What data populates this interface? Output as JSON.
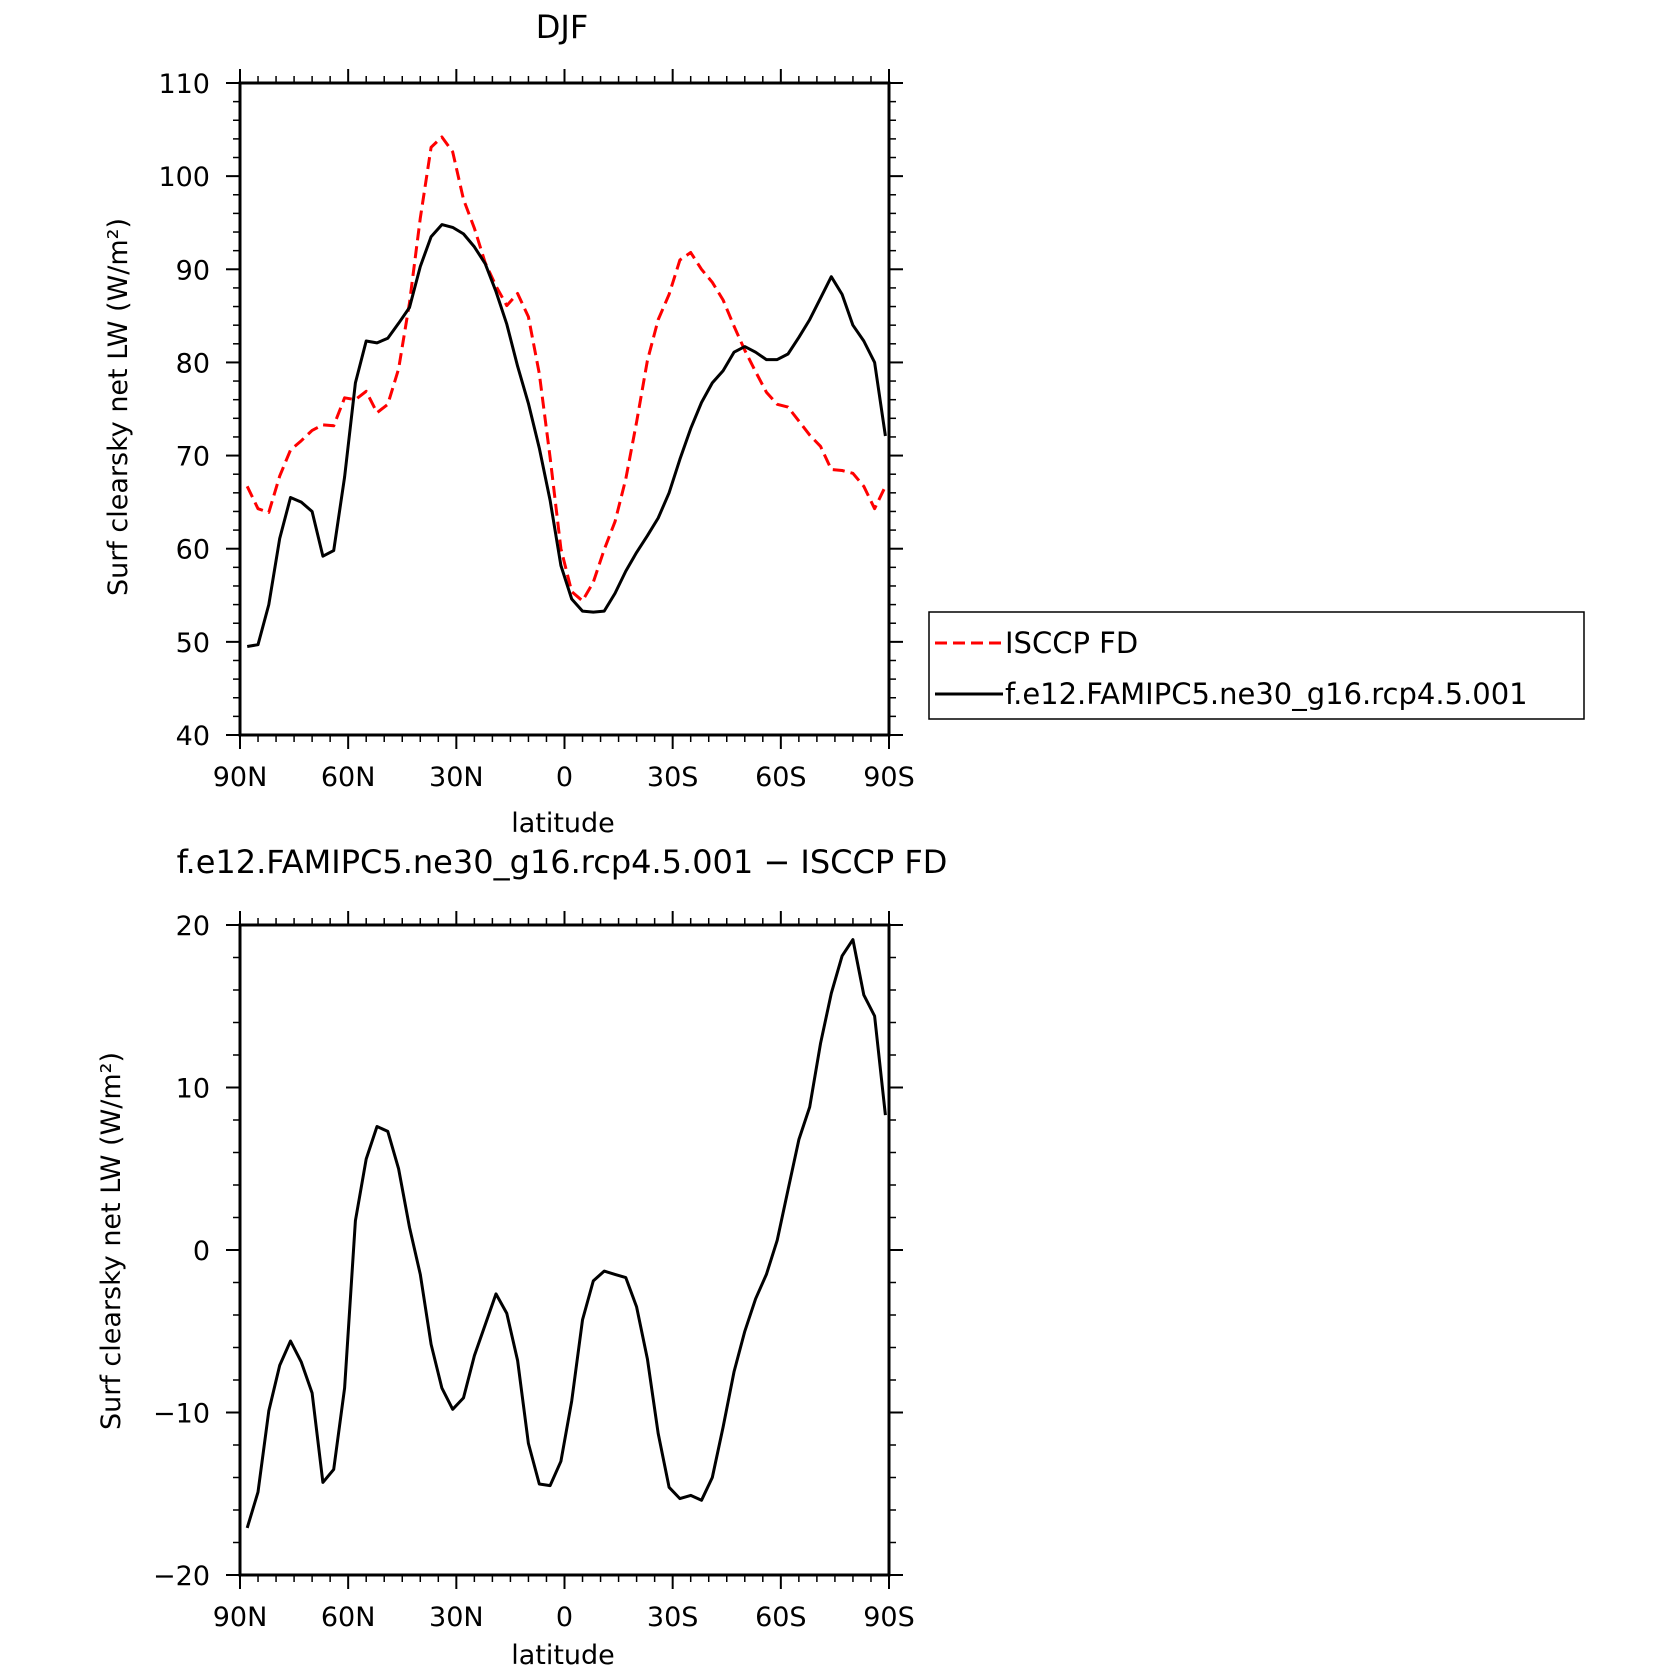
{
  "panels": [
    {
      "title": "DJF",
      "xlabel": "latitude",
      "ylabel": "Surf clearsky net LW (W/m²)",
      "legend": {
        "entries": [
          "ISCCP FD",
          "f.e12.FAMIPC5.ne30_g16.rcp4.5.001"
        ],
        "colors": [
          "#ff0000",
          "#000000"
        ],
        "styles": [
          "dashed",
          "solid"
        ]
      }
    },
    {
      "title": "f.e12.FAMIPC5.ne30_g16.rcp4.5.001 − ISCCP FD",
      "xlabel": "latitude",
      "ylabel": "Surf clearsky net LW (W/m²)"
    }
  ],
  "chart_data": [
    {
      "type": "line",
      "title": "DJF",
      "xlabel": "latitude",
      "ylabel": "Surf clearsky net LW (W/m²)",
      "xlim": [
        90,
        -90
      ],
      "ylim": [
        40,
        110
      ],
      "xticks": [
        90,
        60,
        30,
        0,
        -30,
        -60,
        -90
      ],
      "xtick_labels": [
        "90N",
        "60N",
        "30N",
        "0",
        "30S",
        "60S",
        "90S"
      ],
      "yticks": [
        40,
        50,
        60,
        70,
        80,
        90,
        100,
        110
      ],
      "ytick_labels": [
        "40",
        "50",
        "60",
        "70",
        "80",
        "90",
        "100",
        "110"
      ],
      "legend_position": "right",
      "series": [
        {
          "name": "ISCCP FD",
          "color": "#ff0000",
          "dash": "dashed",
          "x": [
            88,
            85,
            82,
            79,
            76,
            73,
            70,
            67,
            64,
            61,
            58,
            55,
            52,
            49,
            46,
            43,
            40,
            37,
            34,
            31,
            28,
            25,
            22,
            19,
            16,
            13,
            10,
            7,
            4,
            1,
            -2,
            -5,
            -8,
            -11,
            -14,
            -17,
            -20,
            -23,
            -26,
            -29,
            -32,
            -35,
            -38,
            -41,
            -44,
            -47,
            -50,
            -53,
            -56,
            -59,
            -62,
            -65,
            -68,
            -71,
            -74,
            -77,
            -80,
            -83,
            -86,
            -89
          ],
          "y": [
            66.7,
            64.3,
            63.9,
            67.8,
            70.6,
            71.6,
            72.7,
            73.3,
            73.2,
            76.2,
            76.0,
            76.9,
            74.6,
            75.5,
            79.3,
            86.4,
            95.5,
            103.1,
            104.2,
            102.6,
            97.5,
            94.4,
            90.7,
            88.2,
            86.1,
            87.4,
            84.9,
            78.8,
            69.8,
            60.0,
            55.4,
            54.4,
            56.4,
            59.9,
            62.9,
            67.5,
            73.6,
            80.2,
            84.6,
            87.3,
            91.0,
            91.8,
            90.0,
            88.6,
            86.7,
            83.9,
            81.3,
            79.0,
            76.8,
            75.5,
            75.2,
            73.7,
            72.2,
            71.0,
            68.5,
            68.4,
            68.1,
            66.7,
            64.3,
            66.7
          ]
        },
        {
          "name": "f.e12.FAMIPC5.ne30_g16.rcp4.5.001",
          "color": "#000000",
          "dash": "solid",
          "x": [
            88,
            85,
            82,
            79,
            76,
            73,
            70,
            67,
            64,
            61,
            58,
            55,
            52,
            49,
            46,
            43,
            40,
            37,
            34,
            31,
            28,
            25,
            22,
            19,
            16,
            13,
            10,
            7,
            4,
            1,
            -2,
            -5,
            -8,
            -11,
            -14,
            -17,
            -20,
            -23,
            -26,
            -29,
            -32,
            -35,
            -38,
            -41,
            -44,
            -47,
            -50,
            -53,
            -56,
            -59,
            -62,
            -65,
            -68,
            -71,
            -74,
            -77,
            -80,
            -83,
            -86,
            -89
          ],
          "y": [
            49.5,
            49.7,
            54.0,
            61.1,
            65.5,
            65.0,
            64.0,
            59.2,
            59.8,
            67.7,
            77.8,
            82.3,
            82.1,
            82.6,
            84.2,
            85.9,
            90.3,
            93.5,
            94.8,
            94.5,
            93.8,
            92.4,
            90.6,
            87.6,
            84.1,
            79.6,
            75.6,
            70.8,
            65.2,
            58.2,
            54.6,
            53.3,
            53.2,
            53.3,
            55.2,
            57.6,
            59.6,
            61.4,
            63.3,
            66.0,
            69.6,
            72.9,
            75.7,
            77.8,
            79.1,
            81.1,
            81.7,
            81.1,
            80.3,
            80.3,
            80.9,
            82.7,
            84.6,
            86.9,
            89.2,
            87.3,
            84.0,
            82.3,
            80.0,
            72.1
          ]
        }
      ]
    },
    {
      "type": "line",
      "title": "f.e12.FAMIPC5.ne30_g16.rcp4.5.001 − ISCCP FD",
      "xlabel": "latitude",
      "ylabel": "Surf clearsky net LW (W/m²)",
      "xlim": [
        90,
        -90
      ],
      "ylim": [
        -20,
        20
      ],
      "xticks": [
        90,
        60,
        30,
        0,
        -30,
        -60,
        -90
      ],
      "xtick_labels": [
        "90N",
        "60N",
        "30N",
        "0",
        "30S",
        "60S",
        "90S"
      ],
      "yticks": [
        -20,
        -10,
        0,
        10,
        20
      ],
      "ytick_labels": [
        "−20",
        "−10",
        "0",
        "10",
        "20"
      ],
      "series": [
        {
          "color": "#000000",
          "dash": "solid",
          "x": [
            88,
            85,
            82,
            79,
            76,
            73,
            70,
            67,
            64,
            61,
            58,
            55,
            52,
            49,
            46,
            43,
            40,
            37,
            34,
            31,
            28,
            25,
            22,
            19,
            16,
            13,
            10,
            7,
            4,
            1,
            -2,
            -5,
            -8,
            -11,
            -14,
            -17,
            -20,
            -23,
            -26,
            -29,
            -32,
            -35,
            -38,
            -41,
            -44,
            -47,
            -50,
            -53,
            -56,
            -59,
            -62,
            -65,
            -68,
            -71,
            -74,
            -77,
            -80,
            -83,
            -86,
            -89
          ],
          "y": [
            -17.1,
            -14.9,
            -9.9,
            -7.1,
            -5.6,
            -6.9,
            -8.8,
            -14.3,
            -13.5,
            -8.5,
            1.8,
            5.6,
            7.6,
            7.3,
            5.0,
            1.4,
            -1.5,
            -5.8,
            -8.5,
            -9.8,
            -9.1,
            -6.5,
            -4.6,
            -2.7,
            -3.9,
            -6.8,
            -11.9,
            -14.4,
            -14.5,
            -13.0,
            -9.3,
            -4.3,
            -1.9,
            -1.3,
            -1.5,
            -1.7,
            -3.5,
            -6.7,
            -11.3,
            -14.6,
            -15.3,
            -15.1,
            -15.4,
            -14.0,
            -10.9,
            -7.5,
            -5.0,
            -3.0,
            -1.5,
            0.6,
            3.7,
            6.8,
            8.8,
            12.7,
            15.8,
            18.1,
            19.1,
            15.7,
            14.4,
            8.3
          ]
        }
      ]
    }
  ]
}
